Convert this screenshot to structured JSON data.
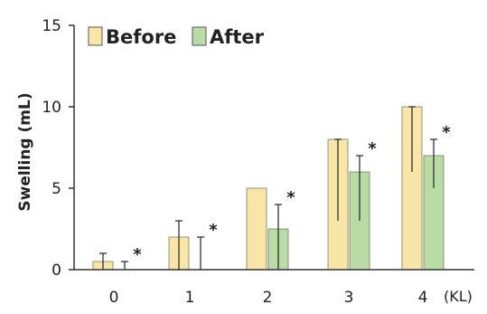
{
  "chart_data": {
    "type": "bar",
    "categories": [
      "0",
      "1",
      "2",
      "3",
      "4"
    ],
    "x_unit": "(KL)",
    "ylabel": "Swelling (mL)",
    "ylim": [
      0,
      15
    ],
    "yticks": [
      "0",
      "5",
      "10",
      "15"
    ],
    "grid": false,
    "legend_position": "top",
    "series": [
      {
        "name": "Before",
        "color": "#f7e6a6",
        "values": [
          0.5,
          2,
          5,
          8,
          10
        ],
        "err_low": [
          0.5,
          2,
          0,
          5,
          4
        ],
        "err_high": [
          0.5,
          1,
          0,
          0,
          0
        ]
      },
      {
        "name": "After",
        "color": "#b9dca4",
        "values": [
          0,
          0,
          2.5,
          6,
          7
        ],
        "err_low": [
          0,
          0,
          2.5,
          3,
          2
        ],
        "err_high": [
          0.5,
          2,
          1.5,
          1,
          1
        ]
      }
    ],
    "annotation": "*",
    "annotated_categories": [
      "0",
      "1",
      "2",
      "3",
      "4"
    ]
  }
}
